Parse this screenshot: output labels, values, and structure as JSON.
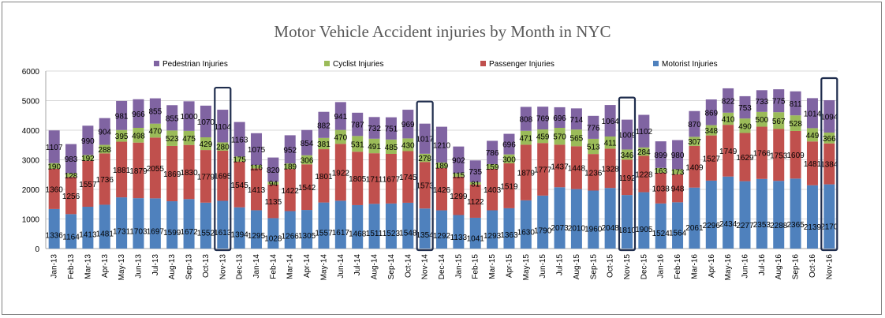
{
  "chart_data": {
    "type": "bar",
    "stacked": true,
    "title": "Motor Vehicle Accident injuries by Month in NYC",
    "xlabel": "",
    "ylabel": "",
    "ylim": [
      0,
      6000
    ],
    "yticks": [
      0,
      1000,
      2000,
      3000,
      4000,
      5000,
      6000
    ],
    "grid": true,
    "legend_position": "top",
    "categories": [
      "Jan-13",
      "Feb-13",
      "Mar-13",
      "Apr-13",
      "May-13",
      "Jun-13",
      "Jul-13",
      "Aug-13",
      "Sep-13",
      "Oct-13",
      "Nov-13",
      "Dec-13",
      "Jan-14",
      "Feb-14",
      "Mar-14",
      "Apr-14",
      "May-14",
      "Jun-14",
      "Jul-14",
      "Aug-14",
      "Sep-14",
      "Oct-14",
      "Nov-14",
      "Dec-14",
      "Jan-15",
      "Feb-15",
      "Mar-15",
      "Apr-15",
      "May-15",
      "Jun-15",
      "Jul-15",
      "Aug-15",
      "Sep-15",
      "Oct-15",
      "Nov-15",
      "Dec-15",
      "Jan-16",
      "Feb-16",
      "Mar-16",
      "Apr-16",
      "May-16",
      "Jun-16",
      "Jul-16",
      "Aug-16",
      "Sep-16",
      "Oct-16",
      "Nov-16"
    ],
    "highlighted_categories": [
      "Nov-13",
      "Nov-14",
      "Nov-15",
      "Nov-16"
    ],
    "series": [
      {
        "name": "Motorist Injuries",
        "color": "#4f81bd",
        "values": [
          1336,
          1164,
          1413,
          1481,
          1731,
          1703,
          1697,
          1599,
          1672,
          1552,
          1613,
          1394,
          1295,
          1028,
          1266,
          1305,
          1557,
          1617,
          1468,
          1511,
          1523,
          1548,
          1354,
          1292,
          1133,
          1041,
          1293,
          1363,
          1630,
          1790,
          2073,
          2010,
          1960,
          2048,
          1810,
          1905,
          1524,
          1564,
          2061,
          2296,
          2434,
          2277,
          2353,
          2288,
          2365,
          2139,
          2170
        ]
      },
      {
        "name": "Passenger Injuries",
        "color": "#c0504d",
        "values": [
          1360,
          1256,
          1557,
          1736,
          1881,
          1879,
          2055,
          1869,
          1830,
          1779,
          1695,
          1545,
          1413,
          1135,
          1422,
          1542,
          1801,
          1922,
          1805,
          1711,
          1677,
          1745,
          1573,
          1426,
          1299,
          1122,
          1403,
          1519,
          1879,
          1777,
          1437,
          1448,
          1236,
          1328,
          1192,
          1228,
          1038,
          948,
          1409,
          1527,
          1749,
          1629,
          1766,
          1753,
          1609,
          1481,
          1384
        ]
      },
      {
        "name": "Cyclist Injuries",
        "color": "#9bbb59",
        "values": [
          190,
          128,
          192,
          288,
          395,
          498,
          470,
          523,
          475,
          429,
          280,
          175,
          116,
          94,
          189,
          306,
          381,
          470,
          531,
          491,
          485,
          430,
          278,
          189,
          115,
          81,
          159,
          300,
          471,
          459,
          570,
          565,
          513,
          411,
          346,
          284,
          163,
          173,
          307,
          348,
          410,
          490,
          500,
          567,
          528,
          449,
          366
        ]
      },
      {
        "name": "Pedestrian Injuries",
        "color": "#8064a2",
        "values": [
          1107,
          983,
          990,
          904,
          981,
          966,
          855,
          855,
          1000,
          1070,
          1104,
          1163,
          1075,
          820,
          952,
          854,
          882,
          941,
          787,
          732,
          751,
          969,
          1017,
          1210,
          902,
          735,
          786,
          696,
          808,
          769,
          696,
          714,
          776,
          1064,
          1009,
          1102,
          899,
          980,
          870,
          869,
          822,
          753,
          733,
          775,
          811,
          1014,
          1094
        ]
      }
    ],
    "legend_order": [
      "Pedestrian Injuries",
      "Cyclist Injuries",
      "Passenger Injuries",
      "Motorist Injuries"
    ]
  }
}
